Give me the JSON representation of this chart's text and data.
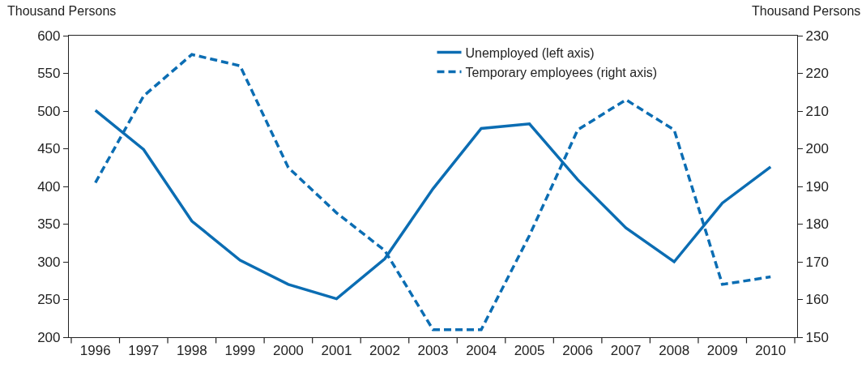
{
  "chart_data": {
    "type": "line",
    "ylabel": "Thousand Persons",
    "y2label": "Thousand Persons",
    "categories": [
      "1996",
      "1997",
      "1998",
      "1999",
      "2000",
      "2001",
      "2002",
      "2003",
      "2004",
      "2005",
      "2006",
      "2007",
      "2008",
      "2009",
      "2010"
    ],
    "series": [
      {
        "name": "Unemployed (left axis)",
        "color": "#0b6db3",
        "line_style": "solid",
        "values": [
          501,
          449,
          354,
          302,
          270,
          251,
          304,
          397,
          477,
          483,
          409,
          345,
          300,
          378,
          426
        ]
      },
      {
        "name": "Temporary employees (right axis)",
        "color": "#0b6db3",
        "line_style": "dashed",
        "axis": "y2",
        "values": [
          191,
          214,
          225,
          222,
          195,
          183,
          173,
          152,
          152,
          177,
          205,
          213,
          205,
          164,
          166
        ]
      }
    ],
    "ylim": [
      200,
      600
    ],
    "yticks": [
      200,
      250,
      300,
      350,
      400,
      450,
      500,
      550,
      600
    ],
    "y2lim": [
      150,
      230
    ],
    "y2ticks": [
      150,
      160,
      170,
      180,
      190,
      200,
      210,
      220,
      230
    ],
    "legend": "top"
  }
}
